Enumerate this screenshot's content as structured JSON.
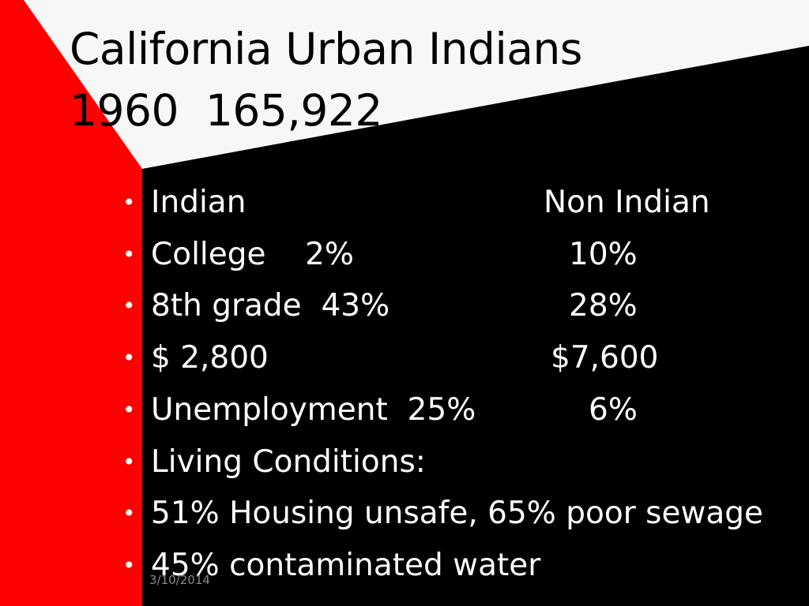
{
  "title": {
    "line1": "California Urban Indians",
    "line2": "1960  165,922"
  },
  "bullets": [
    {
      "left": "Indian",
      "right": "Non Indian"
    },
    {
      "left": "College    2%",
      "right": "10%"
    },
    {
      "left": "8th grade  43%",
      "right": "28%"
    },
    {
      "left": "$ 2,800",
      "right": "$7,600"
    },
    {
      "left": "Unemployment  25%",
      "right": "6%"
    },
    {
      "left": "Living Conditions:",
      "right": ""
    },
    {
      "left": "51% Housing unsafe, 65% poor sewage",
      "right": ""
    },
    {
      "left": "45% contaminated water",
      "right": ""
    }
  ],
  "footer": {
    "date": "3/10/2014"
  },
  "colors": {
    "red": "#ff0000",
    "white": "#f7f7f7",
    "black": "#000000"
  }
}
